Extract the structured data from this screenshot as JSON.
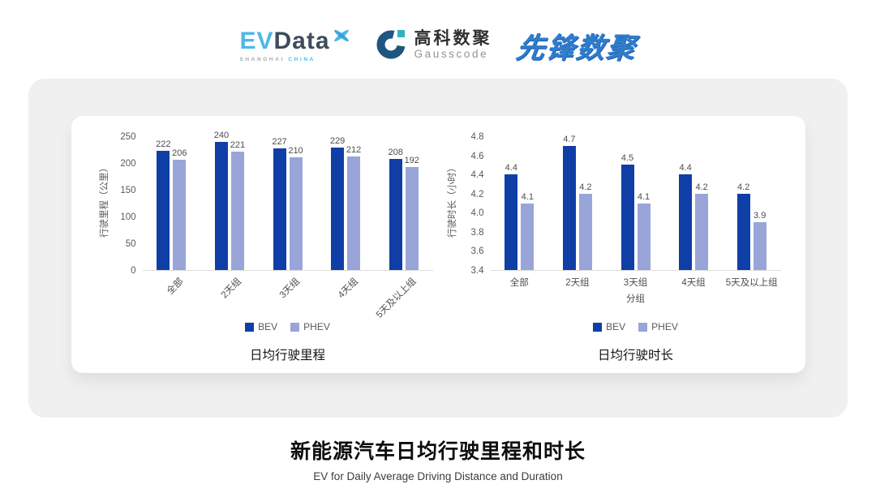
{
  "header": {
    "evdata": {
      "ev": "EV",
      "data": "Data",
      "sub_left": "SHANGHAI",
      "sub_right": "CHINA"
    },
    "gausscode": {
      "cn": "高科数聚",
      "en": "Gausscode"
    },
    "pioneer": {
      "text": "先锋数聚"
    }
  },
  "colors": {
    "bev": "#0f3fa6",
    "phev": "#99a5d8",
    "panel_bg": "#f0f0f0",
    "accent_cyan": "#4ab9e9",
    "dark_slate": "#3e4c5c",
    "pioneer_blue": "#2f7ccc",
    "gauss_ring": "#1f567f",
    "gauss_square": "#35b0bf"
  },
  "chart_data": [
    {
      "type": "bar",
      "title": "日均行驶里程",
      "ylabel": "行驶里程（公里）",
      "xlabel": "",
      "categories": [
        "全部",
        "2天组",
        "3天组",
        "4天组",
        "5天及以上组"
      ],
      "series": [
        {
          "name": "BEV",
          "color": "#0f3fa6",
          "values": [
            222,
            240,
            227,
            229,
            208
          ],
          "labels": [
            "222",
            "240",
            "227",
            "229",
            "208"
          ]
        },
        {
          "name": "PHEV",
          "color": "#99a5d8",
          "values": [
            206,
            221,
            210,
            212,
            192
          ],
          "labels": [
            "206",
            "221",
            "210",
            "212",
            "192"
          ]
        }
      ],
      "ylim": [
        0,
        250
      ],
      "yticks": [
        "250",
        "200",
        "150",
        "100",
        "50",
        "0"
      ],
      "rotated_xticks": true,
      "grid": false,
      "legend_position": "bottom"
    },
    {
      "type": "bar",
      "title": "日均行驶时长",
      "ylabel": "行驶时长（小时）",
      "xlabel": "分组",
      "categories": [
        "全部",
        "2天组",
        "3天组",
        "4天组",
        "5天及以上组"
      ],
      "series": [
        {
          "name": "BEV",
          "color": "#0f3fa6",
          "values": [
            4.4,
            4.7,
            4.5,
            4.4,
            4.2
          ],
          "labels": [
            "4.4",
            "4.7",
            "4.5",
            "4.4",
            "4.2"
          ]
        },
        {
          "name": "PHEV",
          "color": "#99a5d8",
          "values": [
            4.1,
            4.2,
            4.1,
            4.2,
            3.9
          ],
          "labels": [
            "4.1",
            "4.2",
            "4.1",
            "4.2",
            "3.9"
          ]
        }
      ],
      "ylim": [
        3.4,
        4.8
      ],
      "yticks": [
        "4.8",
        "4.6",
        "4.4",
        "4.2",
        "4.0",
        "3.8",
        "3.6",
        "3.4"
      ],
      "rotated_xticks": false,
      "grid": false,
      "legend_position": "bottom"
    }
  ],
  "footer": {
    "title": "新能源汽车日均行驶里程和时长",
    "subtitle": "EV for Daily Average Driving Distance and Duration"
  }
}
